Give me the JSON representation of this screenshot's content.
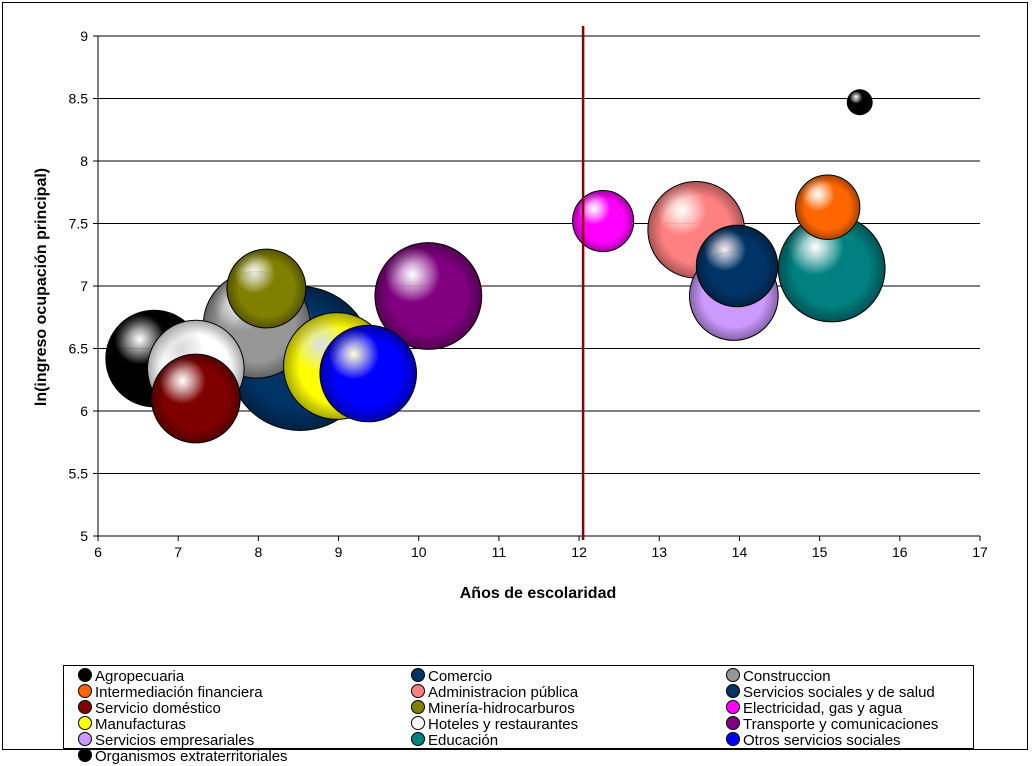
{
  "chart_data": {
    "type": "bubble",
    "title": "",
    "xlabel": "Años de escolaridad",
    "ylabel": "ln(ingreso ocupación principal)",
    "xlim": [
      6,
      17
    ],
    "ylim": [
      5,
      9
    ],
    "xticks": [
      "6",
      "7",
      "8",
      "9",
      "10",
      "11",
      "12",
      "13",
      "14",
      "15",
      "16",
      "17"
    ],
    "yticks": [
      "5",
      "5.5",
      "6",
      "6.5",
      "7",
      "7.5",
      "8",
      "8.5",
      "9"
    ],
    "grid": "horizontal",
    "reference_line_x": 12.05,
    "legend_position": "bottom",
    "series": [
      {
        "name": "Agropecuaria",
        "x": 6.7,
        "y": 6.42,
        "size": 0.45,
        "color": "#000000"
      },
      {
        "name": "Comercio",
        "x": 8.52,
        "y": 6.42,
        "size": 1.0,
        "color": "#003366"
      },
      {
        "name": "Construccion",
        "x": 7.98,
        "y": 6.69,
        "size": 0.55,
        "color": "#969696"
      },
      {
        "name": "Intermediación financiera",
        "x": 15.1,
        "y": 7.63,
        "size": 0.2,
        "color": "#ff6600"
      },
      {
        "name": "Administracion pública",
        "x": 13.46,
        "y": 7.45,
        "size": 0.45,
        "color": "#ff8080"
      },
      {
        "name": "Servicios sociales y de salud",
        "x": 13.97,
        "y": 7.16,
        "size": 0.32,
        "color": "#003366"
      },
      {
        "name": "Servicio doméstico",
        "x": 7.22,
        "y": 6.1,
        "size": 0.38,
        "color": "#800000"
      },
      {
        "name": "Minería-hidrocarburos",
        "x": 8.1,
        "y": 6.98,
        "size": 0.3,
        "color": "#808000"
      },
      {
        "name": "Electricidad, gas y agua",
        "x": 12.3,
        "y": 7.52,
        "size": 0.18,
        "color": "#ff00ff"
      },
      {
        "name": "Manufacturas",
        "x": 8.98,
        "y": 6.36,
        "size": 0.55,
        "color": "#ffff00"
      },
      {
        "name": "Hoteles y restaurantes",
        "x": 7.22,
        "y": 6.34,
        "size": 0.45,
        "color": "#ffffff"
      },
      {
        "name": "Transporte y comunicaciones",
        "x": 10.12,
        "y": 6.92,
        "size": 0.55,
        "color": "#800080"
      },
      {
        "name": "Servicios empresariales",
        "x": 13.93,
        "y": 6.92,
        "size": 0.38,
        "color": "#cc99ff"
      },
      {
        "name": "Educación",
        "x": 15.15,
        "y": 7.14,
        "size": 0.55,
        "color": "#008080"
      },
      {
        "name": "Otros servicios sociales",
        "x": 9.37,
        "y": 6.3,
        "size": 0.45,
        "color": "#0000ff"
      },
      {
        "name": "Organismos extraterritoriales",
        "x": 15.5,
        "y": 8.47,
        "size": 0.03,
        "color": "#000000"
      }
    ],
    "legend_order": [
      "Agropecuaria",
      "Comercio",
      "Construccion",
      "Intermediación financiera",
      "Administracion pública",
      "Servicios sociales y de salud",
      "Servicio doméstico",
      "Minería-hidrocarburos",
      "Electricidad, gas y agua",
      "Manufacturas",
      "Hoteles y restaurantes",
      "Transporte y comunicaciones",
      "Servicios empresariales",
      "Educación",
      "Otros servicios sociales",
      "Organismos extraterritoriales"
    ]
  }
}
